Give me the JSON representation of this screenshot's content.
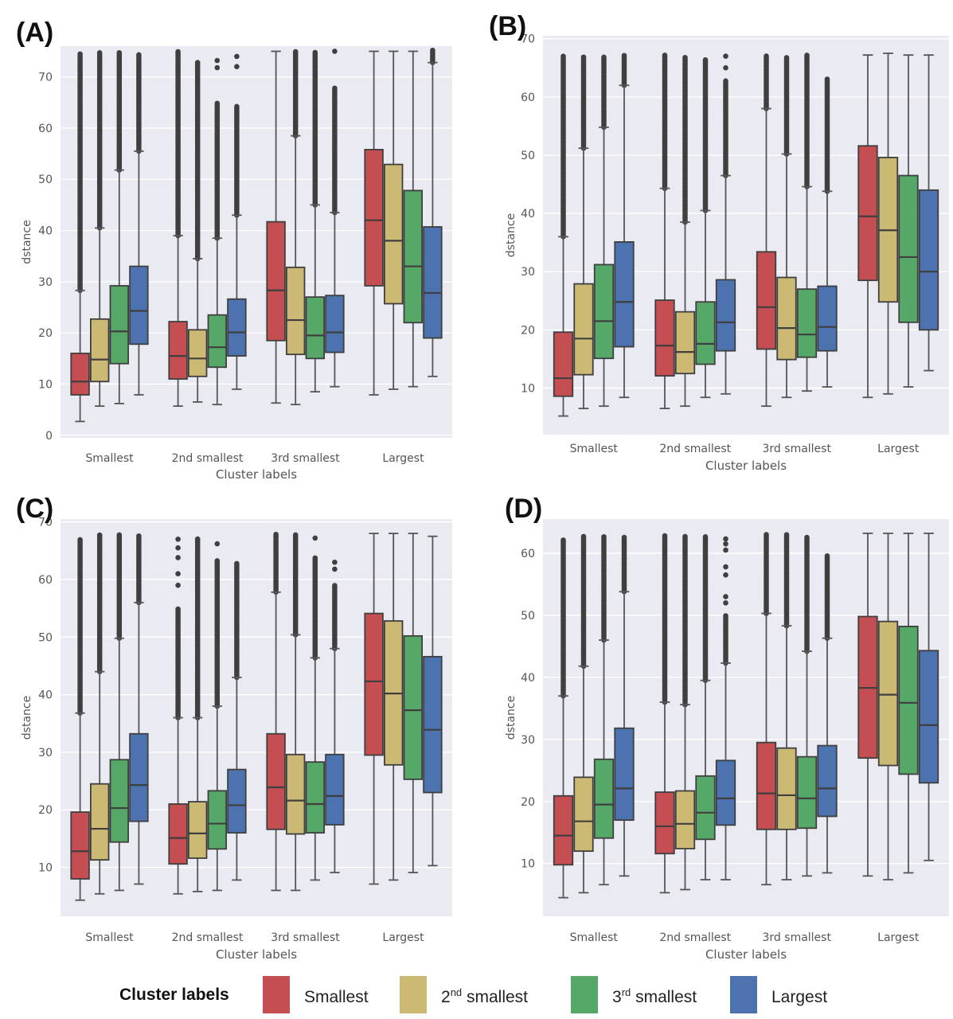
{
  "legend": {
    "title": "Cluster labels",
    "items": [
      {
        "prefix": "Smallest",
        "sup": "",
        "suffix": ""
      },
      {
        "prefix": "2",
        "sup": "nd",
        "suffix": " smallest"
      },
      {
        "prefix": "3",
        "sup": "rd",
        "suffix": " smallest"
      },
      {
        "prefix": "Largest",
        "sup": "",
        "suffix": ""
      }
    ]
  },
  "colors": {
    "series": [
      "#c44e52",
      "#ccb974",
      "#55a868",
      "#4c72b0"
    ],
    "plot_background": "#eaeaf2",
    "gridline": "#ffffff",
    "box_edge": "#3f3f3f",
    "outlier": "#3f3f3f",
    "tick_text": "#555555"
  },
  "chart_data": [
    {
      "panel_label": "(A)",
      "type": "box",
      "xlabel": "Cluster labels",
      "ylabel": "dstance",
      "ylim": [
        -0.5,
        76
      ],
      "yticks": [
        0,
        10,
        20,
        30,
        40,
        50,
        60,
        70
      ],
      "categories": [
        "Smallest",
        "2nd smallest",
        "3rd smallest",
        "Largest"
      ],
      "series_names": [
        "Smallest",
        "2nd smallest",
        "3rd smallest",
        "Largest"
      ],
      "groups": [
        [
          {
            "whislo": 2.7,
            "q1": 7.9,
            "med": 10.5,
            "q3": 16.0,
            "whishi": 28.3,
            "fliers_from": 28.3,
            "fliers_to": 74.5
          },
          {
            "whislo": 5.7,
            "q1": 10.5,
            "med": 14.8,
            "q3": 22.7,
            "whishi": 40.5,
            "fliers_from": 40.5,
            "fliers_to": 75.0
          },
          {
            "whislo": 6.2,
            "q1": 14.0,
            "med": 20.3,
            "q3": 29.2,
            "whishi": 51.8,
            "fliers_from": 51.8,
            "fliers_to": 75.0
          },
          {
            "whislo": 7.9,
            "q1": 17.8,
            "med": 24.3,
            "q3": 33.0,
            "whishi": 55.5,
            "fliers_from": 55.5,
            "fliers_to": 74.5
          }
        ],
        [
          {
            "whislo": 5.7,
            "q1": 11.0,
            "med": 15.5,
            "q3": 22.2,
            "whishi": 39.0,
            "fliers_from": 39.0,
            "fliers_to": 75.0
          },
          {
            "whislo": 6.5,
            "q1": 11.5,
            "med": 15.0,
            "q3": 20.6,
            "whishi": 34.5,
            "fliers_from": 34.5,
            "fliers_to": 73.0
          },
          {
            "whislo": 6.0,
            "q1": 13.3,
            "med": 17.2,
            "q3": 23.5,
            "whishi": 38.5,
            "fliers_from": 38.5,
            "fliers_to": 65.0,
            "extra_fliers": [
              71.8,
              73.2
            ]
          },
          {
            "whislo": 9.0,
            "q1": 15.5,
            "med": 20.1,
            "q3": 26.6,
            "whishi": 43.0,
            "fliers_from": 43.0,
            "fliers_to": 64.5,
            "extra_fliers": [
              72.0,
              74.0
            ]
          }
        ],
        [
          {
            "whislo": 6.3,
            "q1": 18.5,
            "med": 28.3,
            "q3": 41.7,
            "whishi": 75.0
          },
          {
            "whislo": 6.0,
            "q1": 15.8,
            "med": 22.5,
            "q3": 32.8,
            "whishi": 58.5,
            "fliers_from": 58.5,
            "fliers_to": 75.0
          },
          {
            "whislo": 8.5,
            "q1": 15.0,
            "med": 19.5,
            "q3": 27.0,
            "whishi": 45.0,
            "fliers_from": 45.0,
            "fliers_to": 75.0
          },
          {
            "whislo": 9.5,
            "q1": 16.2,
            "med": 20.1,
            "q3": 27.3,
            "whishi": 43.5,
            "fliers_from": 43.5,
            "fliers_to": 68.0,
            "extra_fliers": [
              75.0
            ]
          }
        ],
        [
          {
            "whislo": 7.9,
            "q1": 29.2,
            "med": 42.0,
            "q3": 55.8,
            "whishi": 75.0
          },
          {
            "whislo": 9.0,
            "q1": 25.7,
            "med": 38.0,
            "q3": 52.9,
            "whishi": 75.0
          },
          {
            "whislo": 9.5,
            "q1": 22.0,
            "med": 33.0,
            "q3": 47.8,
            "whishi": 75.0
          },
          {
            "whislo": 11.5,
            "q1": 19.0,
            "med": 27.8,
            "q3": 40.7,
            "whishi": 72.8,
            "fliers_from": 72.8,
            "fliers_to": 75.3
          }
        ]
      ]
    },
    {
      "panel_label": "(B)",
      "type": "box",
      "xlabel": "Cluster labels",
      "ylabel": "dstance",
      "ylim": [
        2,
        70.5
      ],
      "yticks": [
        10,
        20,
        30,
        40,
        50,
        60,
        70
      ],
      "categories": [
        "Smallest",
        "2nd smallest",
        "3rd smallest",
        "Largest"
      ],
      "series_names": [
        "Smallest",
        "2nd smallest",
        "3rd smallest",
        "Largest"
      ],
      "groups": [
        [
          {
            "whislo": 5.2,
            "q1": 8.6,
            "med": 11.7,
            "q3": 19.6,
            "whishi": 36.0,
            "fliers_from": 36.0,
            "fliers_to": 67.0
          },
          {
            "whislo": 6.5,
            "q1": 12.3,
            "med": 18.5,
            "q3": 27.9,
            "whishi": 51.2,
            "fliers_from": 51.2,
            "fliers_to": 67.0
          },
          {
            "whislo": 6.9,
            "q1": 15.1,
            "med": 21.5,
            "q3": 31.2,
            "whishi": 54.8,
            "fliers_from": 54.8,
            "fliers_to": 67.0
          },
          {
            "whislo": 8.4,
            "q1": 17.1,
            "med": 24.8,
            "q3": 35.1,
            "whishi": 62.0,
            "fliers_from": 62.0,
            "fliers_to": 67.2
          }
        ],
        [
          {
            "whislo": 6.5,
            "q1": 12.1,
            "med": 17.3,
            "q3": 25.1,
            "whishi": 44.3,
            "fliers_from": 44.3,
            "fliers_to": 67.2
          },
          {
            "whislo": 6.9,
            "q1": 12.5,
            "med": 16.2,
            "q3": 23.1,
            "whishi": 38.5,
            "fliers_from": 38.5,
            "fliers_to": 67.0
          },
          {
            "whislo": 8.4,
            "q1": 14.1,
            "med": 17.6,
            "q3": 24.8,
            "whishi": 40.5,
            "fliers_from": 40.5,
            "fliers_to": 66.5
          },
          {
            "whislo": 9.0,
            "q1": 16.4,
            "med": 21.3,
            "q3": 28.6,
            "whishi": 46.5,
            "fliers_from": 46.5,
            "fliers_to": 63.0,
            "extra_fliers": [
              65.0,
              67.0
            ]
          }
        ],
        [
          {
            "whislo": 6.9,
            "q1": 16.7,
            "med": 23.9,
            "q3": 33.4,
            "whishi": 58.0,
            "fliers_from": 58.0,
            "fliers_to": 67.2
          },
          {
            "whislo": 8.4,
            "q1": 14.9,
            "med": 20.3,
            "q3": 29.0,
            "whishi": 50.2,
            "fliers_from": 50.2,
            "fliers_to": 67.0
          },
          {
            "whislo": 9.5,
            "q1": 15.3,
            "med": 19.2,
            "q3": 27.0,
            "whishi": 44.6,
            "fliers_from": 44.6,
            "fliers_to": 67.2
          },
          {
            "whislo": 10.2,
            "q1": 16.4,
            "med": 20.5,
            "q3": 27.5,
            "whishi": 43.8,
            "fliers_from": 43.8,
            "fliers_to": 63.2
          }
        ],
        [
          {
            "whislo": 8.4,
            "q1": 28.5,
            "med": 39.5,
            "q3": 51.6,
            "whishi": 67.2
          },
          {
            "whislo": 9.0,
            "q1": 24.8,
            "med": 37.1,
            "q3": 49.6,
            "whishi": 67.5
          },
          {
            "whislo": 10.2,
            "q1": 21.3,
            "med": 32.5,
            "q3": 46.5,
            "whishi": 67.2
          },
          {
            "whislo": 13.0,
            "q1": 20.0,
            "med": 30.0,
            "q3": 44.0,
            "whishi": 67.2
          }
        ]
      ]
    },
    {
      "panel_label": "(C)",
      "type": "box",
      "xlabel": "Cluster labels",
      "ylabel": "dstance",
      "ylim": [
        1.5,
        70.5
      ],
      "yticks": [
        10,
        20,
        30,
        40,
        50,
        60,
        70
      ],
      "categories": [
        "Smallest",
        "2nd smallest",
        "3rd smallest",
        "Largest"
      ],
      "series_names": [
        "Smallest",
        "2nd smallest",
        "3rd smallest",
        "Largest"
      ],
      "groups": [
        [
          {
            "whislo": 4.3,
            "q1": 8.0,
            "med": 12.8,
            "q3": 19.6,
            "whishi": 36.8,
            "fliers_from": 36.8,
            "fliers_to": 67.2
          },
          {
            "whislo": 5.4,
            "q1": 11.3,
            "med": 16.7,
            "q3": 24.5,
            "whishi": 44.0,
            "fliers_from": 44.0,
            "fliers_to": 68.0
          },
          {
            "whislo": 6.0,
            "q1": 14.4,
            "med": 20.3,
            "q3": 28.7,
            "whishi": 49.8,
            "fliers_from": 49.8,
            "fliers_to": 67.8
          },
          {
            "whislo": 7.1,
            "q1": 18.0,
            "med": 24.3,
            "q3": 33.2,
            "whishi": 56.0,
            "fliers_from": 56.0,
            "fliers_to": 67.8
          }
        ],
        [
          {
            "whislo": 5.4,
            "q1": 10.6,
            "med": 15.1,
            "q3": 21.0,
            "whishi": 36.0,
            "fliers_from": 36.0,
            "fliers_to": 55.0,
            "extra_fliers": [
              59.0,
              61.0,
              63.8,
              65.5,
              67.0
            ]
          },
          {
            "whislo": 5.8,
            "q1": 11.6,
            "med": 15.9,
            "q3": 21.4,
            "whishi": 36.0,
            "fliers_from": 36.0,
            "fliers_to": 67.2
          },
          {
            "whislo": 6.0,
            "q1": 13.2,
            "med": 17.6,
            "q3": 23.3,
            "whishi": 38.0,
            "fliers_from": 38.0,
            "fliers_to": 63.5,
            "extra_fliers": [
              66.2
            ]
          },
          {
            "whislo": 7.8,
            "q1": 16.0,
            "med": 20.8,
            "q3": 27.0,
            "whishi": 43.0,
            "fliers_from": 43.0,
            "fliers_to": 63.0
          }
        ],
        [
          {
            "whislo": 6.0,
            "q1": 16.6,
            "med": 23.9,
            "q3": 33.2,
            "whishi": 57.8,
            "fliers_from": 57.8,
            "fliers_to": 68.0
          },
          {
            "whislo": 6.0,
            "q1": 15.8,
            "med": 21.6,
            "q3": 29.6,
            "whishi": 50.4,
            "fliers_from": 50.4,
            "fliers_to": 67.8
          },
          {
            "whislo": 7.8,
            "q1": 16.0,
            "med": 21.0,
            "q3": 28.3,
            "whishi": 46.4,
            "fliers_from": 46.4,
            "fliers_to": 64.0,
            "extra_fliers": [
              67.2
            ]
          },
          {
            "whislo": 9.1,
            "q1": 17.4,
            "med": 22.4,
            "q3": 29.6,
            "whishi": 48.0,
            "fliers_from": 48.0,
            "fliers_to": 59.0,
            "extra_fliers": [
              61.8,
              63.0
            ]
          }
        ],
        [
          {
            "whislo": 7.1,
            "q1": 29.5,
            "med": 42.3,
            "q3": 54.1,
            "whishi": 68.0
          },
          {
            "whislo": 7.8,
            "q1": 27.8,
            "med": 40.2,
            "q3": 52.8,
            "whishi": 68.0
          },
          {
            "whislo": 9.1,
            "q1": 25.3,
            "med": 37.3,
            "q3": 50.2,
            "whishi": 68.0
          },
          {
            "whislo": 10.3,
            "q1": 23.0,
            "med": 33.9,
            "q3": 46.6,
            "whishi": 67.5
          }
        ]
      ]
    },
    {
      "panel_label": "(D)",
      "type": "box",
      "xlabel": "Cluster labels",
      "ylabel": "dstance",
      "ylim": [
        1.5,
        65.5
      ],
      "yticks": [
        10,
        20,
        30,
        40,
        50,
        60
      ],
      "categories": [
        "Smallest",
        "2nd smallest",
        "3rd smallest",
        "Largest"
      ],
      "series_names": [
        "Smallest",
        "2nd smallest",
        "3rd smallest",
        "Largest"
      ],
      "groups": [
        [
          {
            "whislo": 4.5,
            "q1": 9.8,
            "med": 14.5,
            "q3": 20.9,
            "whishi": 37.0,
            "fliers_from": 37.0,
            "fliers_to": 62.3
          },
          {
            "whislo": 5.3,
            "q1": 12.0,
            "med": 16.8,
            "q3": 23.9,
            "whishi": 41.8,
            "fliers_from": 41.8,
            "fliers_to": 62.8
          },
          {
            "whislo": 6.6,
            "q1": 14.1,
            "med": 19.5,
            "q3": 26.8,
            "whishi": 46.0,
            "fliers_from": 46.0,
            "fliers_to": 62.8
          },
          {
            "whislo": 8.0,
            "q1": 17.0,
            "med": 22.1,
            "q3": 31.8,
            "whishi": 53.8,
            "fliers_from": 53.8,
            "fliers_to": 62.8
          }
        ],
        [
          {
            "whislo": 5.3,
            "q1": 11.6,
            "med": 16.0,
            "q3": 21.5,
            "whishi": 36.0,
            "fliers_from": 36.0,
            "fliers_to": 62.8
          },
          {
            "whislo": 5.8,
            "q1": 12.4,
            "med": 16.4,
            "q3": 21.7,
            "whishi": 35.6,
            "fliers_from": 35.6,
            "fliers_to": 62.8
          },
          {
            "whislo": 7.4,
            "q1": 13.9,
            "med": 18.2,
            "q3": 24.1,
            "whishi": 39.5,
            "fliers_from": 39.5,
            "fliers_to": 62.8
          },
          {
            "whislo": 7.4,
            "q1": 16.2,
            "med": 20.5,
            "q3": 26.6,
            "whishi": 42.3,
            "fliers_from": 42.3,
            "fliers_to": 50.0,
            "extra_fliers": [
              52.0,
              53.0,
              56.5,
              57.8,
              60.5,
              61.5,
              62.3
            ]
          }
        ],
        [
          {
            "whislo": 6.6,
            "q1": 15.5,
            "med": 21.3,
            "q3": 29.5,
            "whishi": 50.3,
            "fliers_from": 50.3,
            "fliers_to": 63.0
          },
          {
            "whislo": 7.4,
            "q1": 15.5,
            "med": 21.0,
            "q3": 28.6,
            "whishi": 48.3,
            "fliers_from": 48.3,
            "fliers_to": 63.0
          },
          {
            "whislo": 8.0,
            "q1": 15.7,
            "med": 20.5,
            "q3": 27.2,
            "whishi": 44.2,
            "fliers_from": 44.2,
            "fliers_to": 62.8
          },
          {
            "whislo": 8.5,
            "q1": 17.6,
            "med": 22.1,
            "q3": 29.0,
            "whishi": 46.3,
            "fliers_from": 46.3,
            "fliers_to": 59.8
          }
        ],
        [
          {
            "whislo": 8.0,
            "q1": 27.0,
            "med": 38.3,
            "q3": 49.8,
            "whishi": 63.2
          },
          {
            "whislo": 7.4,
            "q1": 25.8,
            "med": 37.2,
            "q3": 49.0,
            "whishi": 63.2
          },
          {
            "whislo": 8.5,
            "q1": 24.4,
            "med": 35.9,
            "q3": 48.2,
            "whishi": 63.2
          },
          {
            "whislo": 10.5,
            "q1": 23.0,
            "med": 32.3,
            "q3": 44.3,
            "whishi": 63.2
          }
        ]
      ]
    }
  ]
}
